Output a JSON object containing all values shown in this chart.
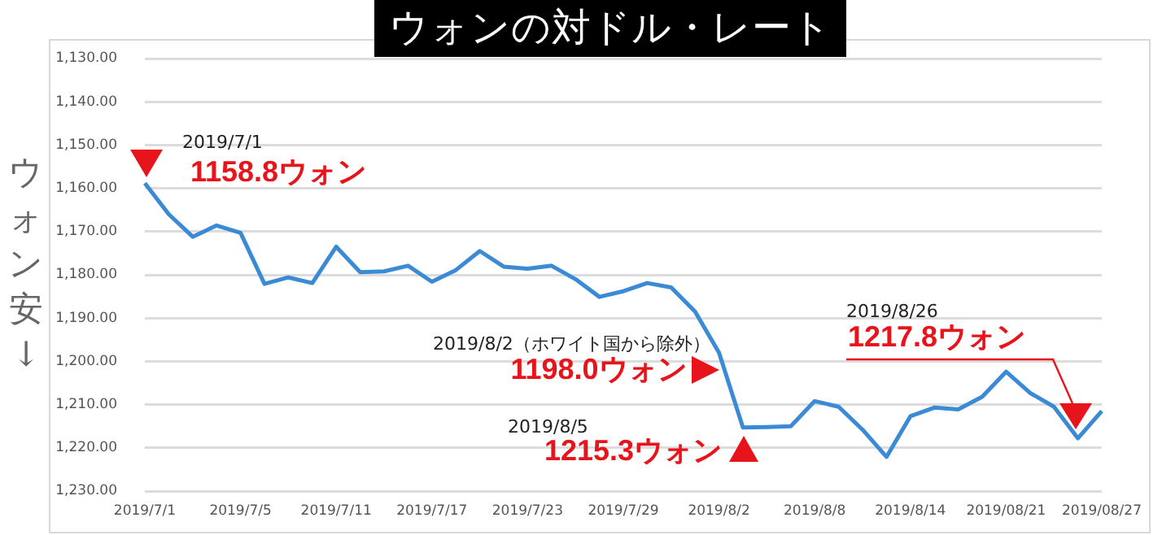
{
  "chart_data": {
    "type": "line",
    "title": "ウォンの対ドル・レート",
    "ylabel": "ウォン安↓",
    "categories": [
      "2019/7/1",
      null,
      null,
      null,
      "2019/7/5",
      null,
      null,
      null,
      "2019/7/11",
      null,
      null,
      null,
      "2019/7/17",
      null,
      null,
      null,
      "2019/7/23",
      null,
      null,
      null,
      "2019/7/29",
      null,
      null,
      null,
      "2019/8/2",
      null,
      null,
      null,
      "2019/8/8",
      null,
      null,
      null,
      "2019/8/14",
      null,
      null,
      null,
      "2019/08/21",
      null,
      null,
      null,
      "2019/08/27"
    ],
    "series": [
      {
        "color": "#3a8ad6",
        "values": [
          1158.8,
          1166.0,
          1171.2,
          1168.6,
          1170.3,
          1182.1,
          1180.6,
          1181.9,
          1173.5,
          1179.4,
          1179.2,
          1177.9,
          1181.6,
          1178.9,
          1174.5,
          1178.1,
          1178.6,
          1177.9,
          1181.0,
          1185.1,
          1183.8,
          1181.9,
          1182.9,
          1188.5,
          1198.0,
          1215.3,
          1215.2,
          1215.0,
          1209.2,
          1210.5,
          1215.8,
          1222.1,
          1212.7,
          1210.7,
          1211.1,
          1208.2,
          1202.4,
          1207.3,
          1210.5,
          1217.8,
          1211.5
        ],
        "value_labels": [
          "1158.8ウォン",
          null,
          null,
          null,
          null,
          null,
          null,
          null,
          null,
          null,
          null,
          null,
          null,
          null,
          null,
          null,
          null,
          null,
          null,
          null,
          null,
          null,
          null,
          null,
          "1198.0ウォン",
          "1215.3ウォン",
          null,
          null,
          null,
          null,
          null,
          null,
          null,
          null,
          null,
          null,
          null,
          null,
          null,
          null,
          null
        ]
      }
    ],
    "ylim": [
      1230,
      1130
    ],
    "yticks": [
      {
        "value": 1130,
        "label": "1,130.00"
      },
      {
        "value": 1140,
        "label": "1,140.00"
      },
      {
        "value": 1150,
        "label": "1,150.00"
      },
      {
        "value": 1160,
        "label": "1,160.00"
      },
      {
        "value": 1170,
        "label": "1,170.00"
      },
      {
        "value": 1180,
        "label": "1,180.00"
      },
      {
        "value": 1190,
        "label": "1,190.00"
      },
      {
        "value": 1200,
        "label": "1,200.00"
      },
      {
        "value": 1210,
        "label": "1,210.00"
      },
      {
        "value": 1220,
        "label": "1,220.00"
      },
      {
        "value": 1230,
        "label": "1,230.00"
      }
    ],
    "annotations": [
      "2019/7/1",
      "2019/8/2（ホワイト国から除外）",
      "2019/8/5",
      "2019/8/26",
      "1217.8ウォン"
    ],
    "grid": "y",
    "legend": false,
    "marker": "none",
    "line_style": "solid"
  }
}
